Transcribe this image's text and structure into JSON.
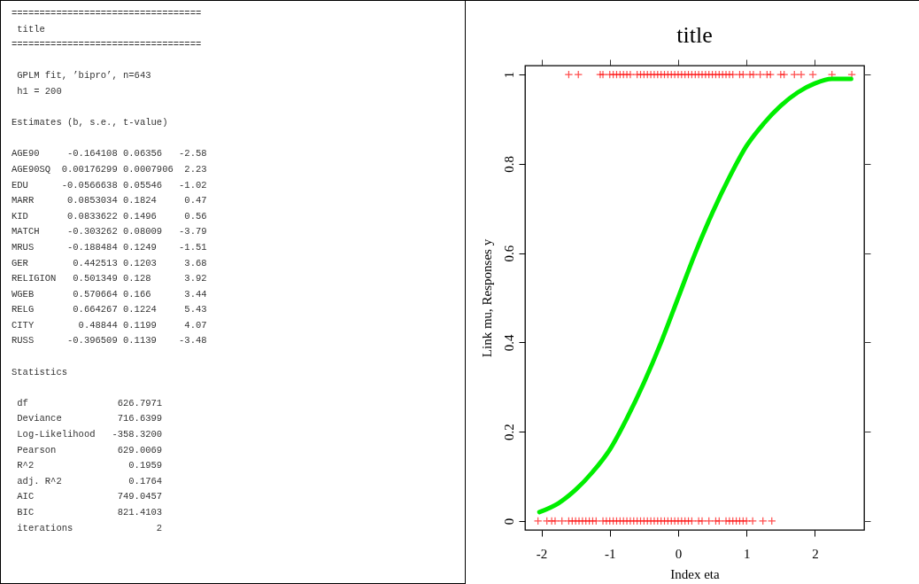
{
  "chart_data": [
    {
      "type": "other",
      "title": "title",
      "annotations": [
        "==================================",
        "==================================",
        " GPLM fit, ’bipro’, n=643\n h1 = 200",
        "Estimates (b, s.e., t-value)",
        "AGE90     -0.164108 0.06356   -2.58\nAGE90SQ  0.00176299 0.0007906  2.23\nEDU      -0.0566638 0.05546   -1.02\nMARR      0.0853034 0.1824     0.47\nKID       0.0833622 0.1496     0.56\nMATCH     -0.303262 0.08009   -3.79\nMRUS      -0.188484 0.1249    -1.51\nGER        0.442513 0.1203     3.68\nRELIGION   0.501349 0.128      3.92\nWGEB       0.570664 0.166      3.44\nRELG       0.664267 0.1224     5.43\nCITY        0.48844 0.1199     4.07\nRUSS      -0.396509 0.1139    -3.48",
        "Statistics",
        " df                626.7971\n Deviance          716.6399\n Log-Likelihood   -358.3200\n Pearson           629.0069\n R^2                 0.1959\n adj. R^2            0.1764\n AIC               749.0457\n BIC               821.4103\n iterations               2"
      ]
    },
    {
      "type": "line",
      "title": "title",
      "xlabel": "Index eta",
      "ylabel": "Link mu, Responses y",
      "xlim": [
        -2.24,
        2.72
      ],
      "ylim": [
        -0.02,
        1.02
      ],
      "xticks": [
        -2,
        -1,
        0,
        1,
        2
      ],
      "yticks": [
        0,
        0.2,
        0.4,
        0.6,
        0.8,
        1
      ],
      "grid": false,
      "line_style": "solid",
      "series": [
        {
          "type": "scatter",
          "color": "#ff0000",
          "marker": "cross",
          "x": [
            -1.6,
            -1.46,
            -1.14,
            -1.1,
            -1.0,
            -0.95,
            -0.9,
            -0.85,
            -0.8,
            -0.75,
            -0.7,
            -0.6,
            -0.55,
            -0.5,
            -0.45,
            -0.4,
            -0.35,
            -0.3,
            -0.25,
            -0.2,
            -0.15,
            -0.1,
            -0.05,
            0,
            0.05,
            0.1,
            0.15,
            0.2,
            0.25,
            0.3,
            0.35,
            0.4,
            0.45,
            0.5,
            0.55,
            0.6,
            0.65,
            0.7,
            0.75,
            0.8,
            0.9,
            0.95,
            1.05,
            1.1,
            1.2,
            1.3,
            1.35,
            1.5,
            1.55,
            1.7,
            1.8,
            1.97,
            2.25,
            2.54,
            -2.05,
            -1.92,
            -1.85,
            -1.8,
            -1.7,
            -1.6,
            -1.55,
            -1.5,
            -1.45,
            -1.4,
            -1.35,
            -1.3,
            -1.25,
            -1.2,
            -1.1,
            -1.05,
            -1.0,
            -0.95,
            -0.9,
            -0.85,
            -0.8,
            -0.75,
            -0.7,
            -0.65,
            -0.6,
            -0.55,
            -0.5,
            -0.45,
            -0.4,
            -0.35,
            -0.3,
            -0.25,
            -0.2,
            -0.15,
            -0.1,
            -0.05,
            0,
            0.05,
            0.1,
            0.15,
            0.2,
            0.3,
            0.35,
            0.45,
            0.55,
            0.6,
            0.7,
            0.75,
            0.8,
            0.85,
            0.9,
            0.95,
            1.0,
            1.09,
            1.24,
            1.37
          ],
          "values": [
            1,
            1,
            1,
            1,
            1,
            1,
            1,
            1,
            1,
            1,
            1,
            1,
            1,
            1,
            1,
            1,
            1,
            1,
            1,
            1,
            1,
            1,
            1,
            1,
            1,
            1,
            1,
            1,
            1,
            1,
            1,
            1,
            1,
            1,
            1,
            1,
            1,
            1,
            1,
            1,
            1,
            1,
            1,
            1,
            1,
            1,
            1,
            1,
            1,
            1,
            1,
            1,
            1,
            1,
            0,
            0,
            0,
            0,
            0,
            0,
            0,
            0,
            0,
            0,
            0,
            0,
            0,
            0,
            0,
            0,
            0,
            0,
            0,
            0,
            0,
            0,
            0,
            0,
            0,
            0,
            0,
            0,
            0,
            0,
            0,
            0,
            0,
            0,
            0,
            0,
            0,
            0,
            0,
            0,
            0,
            0,
            0,
            0,
            0,
            0,
            0,
            0,
            0,
            0,
            0,
            0,
            0,
            0,
            0,
            0
          ]
        },
        {
          "type": "line",
          "color": "#00ee00",
          "x": [
            -2.03,
            -1.75,
            -1.5,
            -1.25,
            -1,
            -0.75,
            -0.5,
            -0.25,
            0,
            0.25,
            0.5,
            0.75,
            1,
            1.25,
            1.5,
            1.75,
            2,
            2.25,
            2.53
          ],
          "values": [
            0.02,
            0.04,
            0.07,
            0.11,
            0.16,
            0.23,
            0.31,
            0.4,
            0.5,
            0.6,
            0.69,
            0.77,
            0.84,
            0.89,
            0.93,
            0.96,
            0.98,
            0.99,
            0.99
          ]
        }
      ]
    }
  ]
}
